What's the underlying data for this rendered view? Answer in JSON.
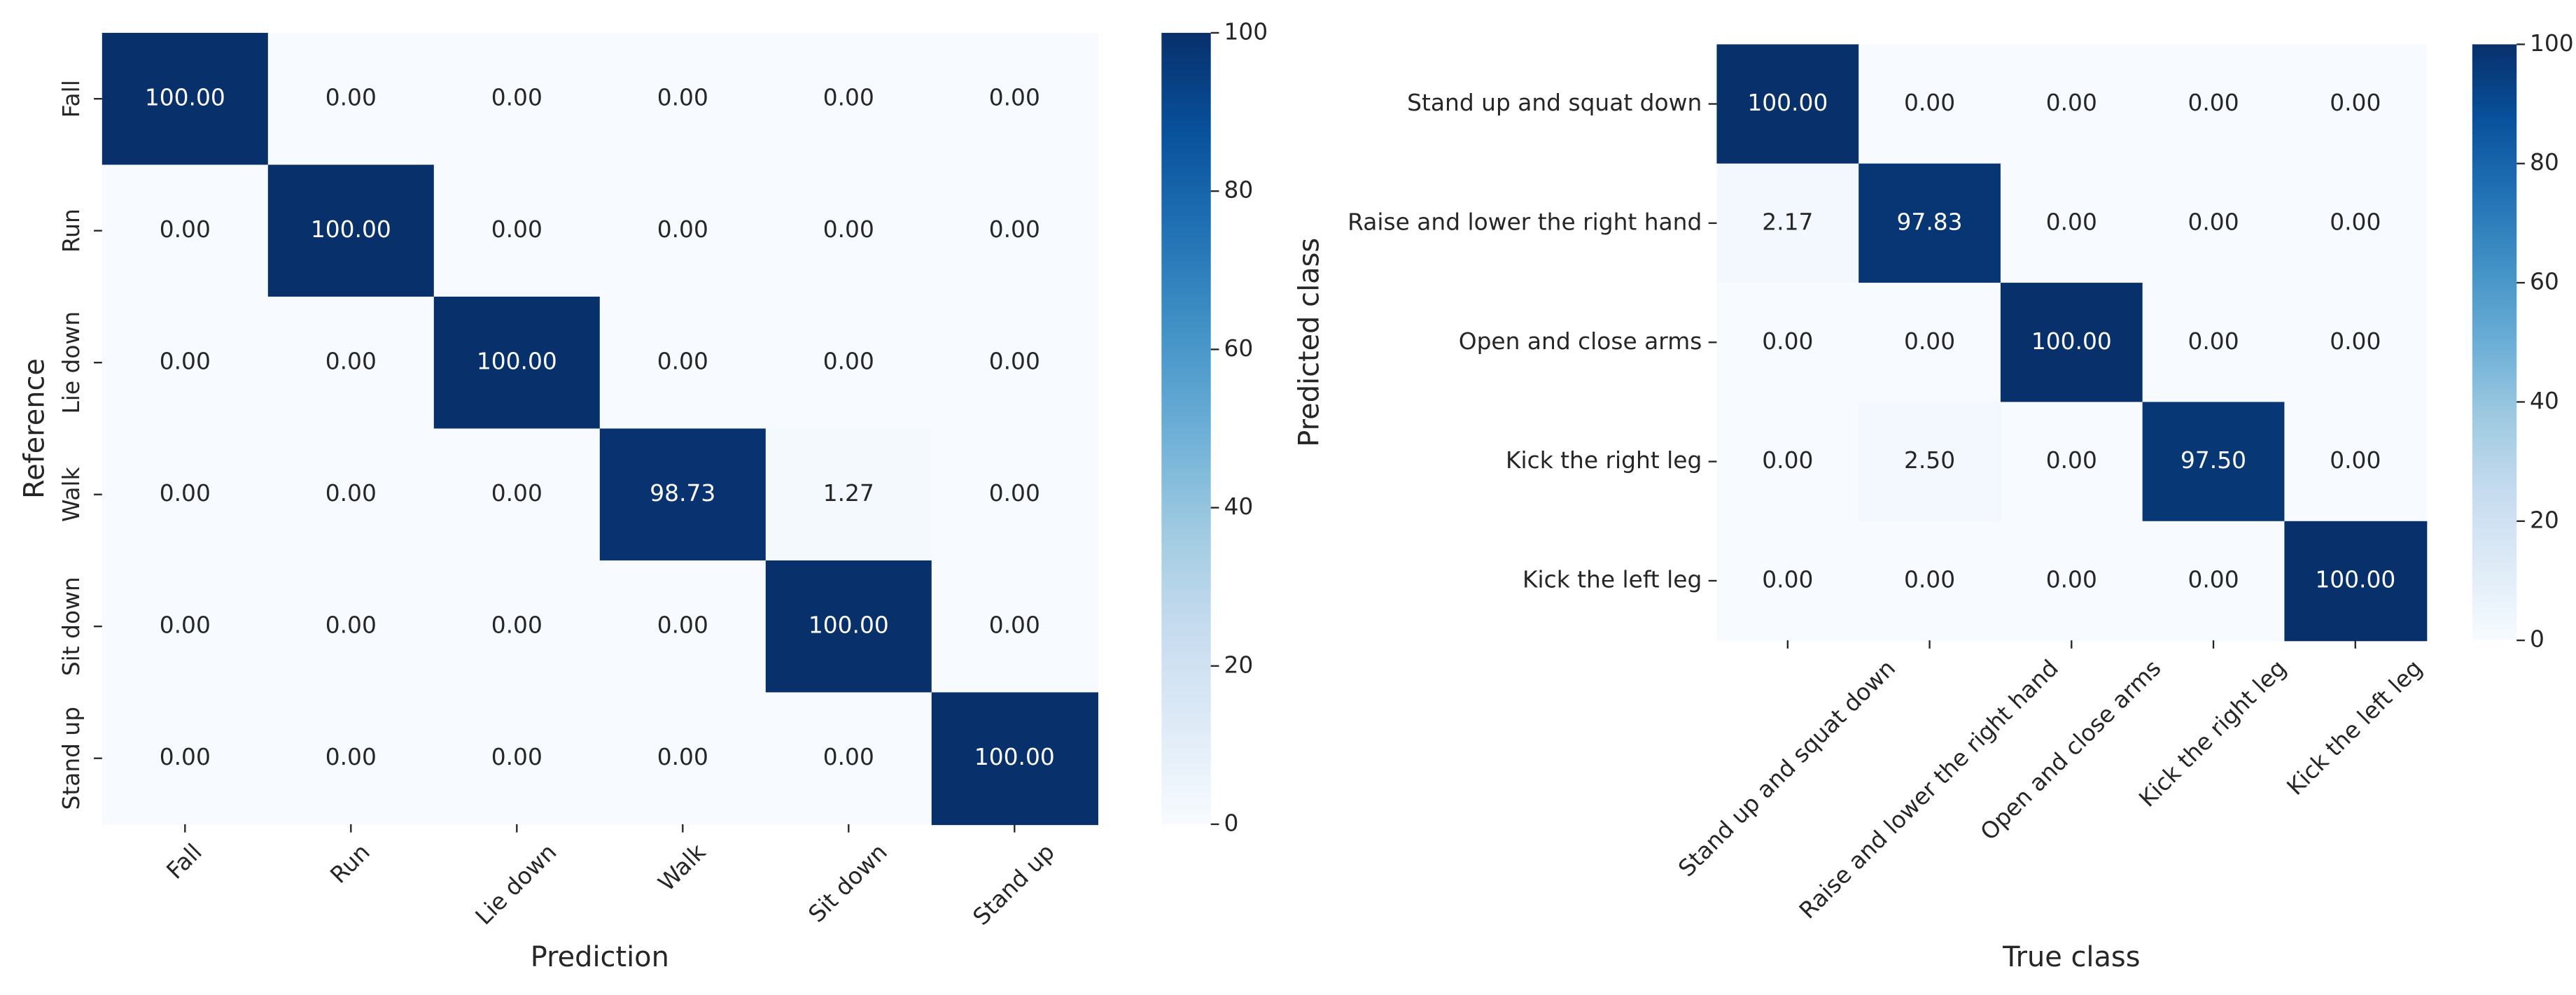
{
  "chart_data": [
    {
      "type": "heatmap",
      "x_label": "Prediction",
      "y_label": "Reference",
      "x_categories": [
        "Fall",
        "Run",
        "Lie down",
        "Walk",
        "Sit down",
        "Stand up"
      ],
      "y_categories": [
        "Fall",
        "Run",
        "Lie down",
        "Walk",
        "Sit down",
        "Stand up"
      ],
      "values": [
        [
          100,
          0,
          0,
          0,
          0,
          0
        ],
        [
          0,
          100,
          0,
          0,
          0,
          0
        ],
        [
          0,
          0,
          100,
          0,
          0,
          0
        ],
        [
          0,
          0,
          0,
          98.73,
          1.27,
          0
        ],
        [
          0,
          0,
          0,
          0,
          100,
          0
        ],
        [
          0,
          0,
          0,
          0,
          0,
          100
        ]
      ],
      "value_labels": [
        [
          "100.00",
          "0.00",
          "0.00",
          "0.00",
          "0.00",
          "0.00"
        ],
        [
          "0.00",
          "100.00",
          "0.00",
          "0.00",
          "0.00",
          "0.00"
        ],
        [
          "0.00",
          "0.00",
          "100.00",
          "0.00",
          "0.00",
          "0.00"
        ],
        [
          "0.00",
          "0.00",
          "0.00",
          "98.73",
          "1.27",
          "0.00"
        ],
        [
          "0.00",
          "0.00",
          "0.00",
          "0.00",
          "100.00",
          "0.00"
        ],
        [
          "0.00",
          "0.00",
          "0.00",
          "0.00",
          "0.00",
          "100.00"
        ]
      ],
      "colormap": "Blues",
      "clim": [
        0,
        100
      ],
      "cticks": [
        0,
        20,
        40,
        60,
        80,
        100
      ]
    },
    {
      "type": "heatmap",
      "x_label": "True class",
      "y_label": "Predicted class",
      "x_categories": [
        "Stand up and squat down",
        "Raise and lower the right hand",
        "Open and close arms",
        "Kick the right leg",
        "Kick the left leg"
      ],
      "y_categories": [
        "Stand up and squat down",
        "Raise and lower the right hand",
        "Open and close arms",
        "Kick the right leg",
        "Kick the left leg"
      ],
      "values": [
        [
          100,
          0,
          0,
          0,
          0
        ],
        [
          2.17,
          97.83,
          0,
          0,
          0
        ],
        [
          0,
          0,
          100,
          0,
          0
        ],
        [
          0,
          2.5,
          0,
          97.5,
          0
        ],
        [
          0,
          0,
          0,
          0,
          100
        ]
      ],
      "value_labels": [
        [
          "100.00",
          "0.00",
          "0.00",
          "0.00",
          "0.00"
        ],
        [
          "2.17",
          "97.83",
          "0.00",
          "0.00",
          "0.00"
        ],
        [
          "0.00",
          "0.00",
          "100.00",
          "0.00",
          "0.00"
        ],
        [
          "0.00",
          "2.50",
          "0.00",
          "97.50",
          "0.00"
        ],
        [
          "0.00",
          "0.00",
          "0.00",
          "0.00",
          "100.00"
        ]
      ],
      "colormap": "Blues",
      "clim": [
        0,
        100
      ],
      "cticks": [
        0,
        20,
        40,
        60,
        80,
        100
      ]
    }
  ]
}
